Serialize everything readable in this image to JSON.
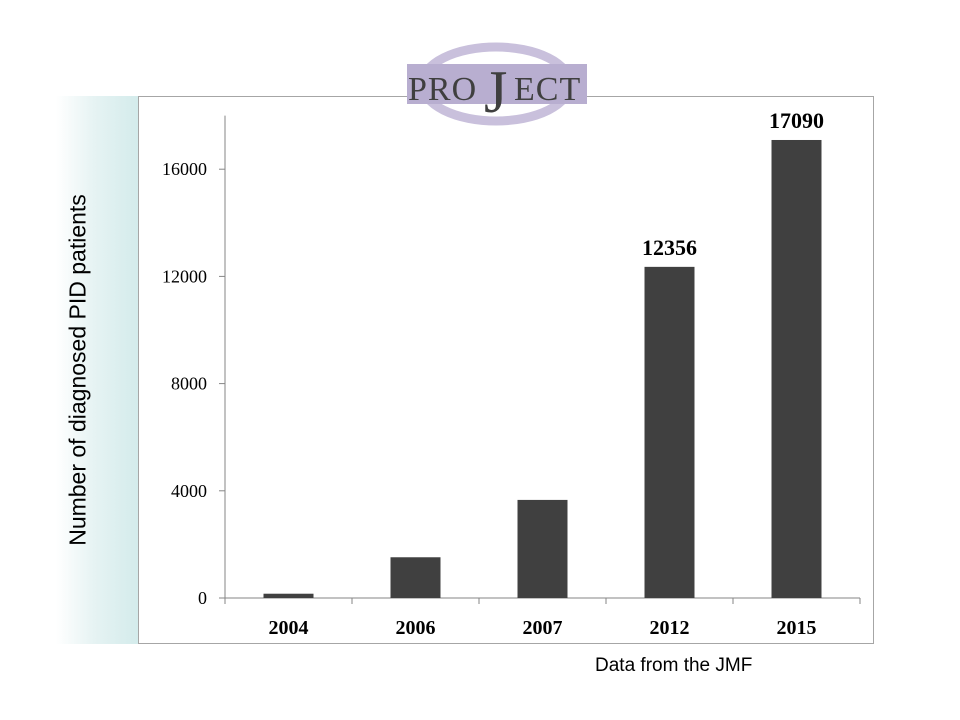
{
  "logo": {
    "text_left": "PRO",
    "text_big": "J",
    "text_right": "ECT",
    "ring_color": "#c9c0dc",
    "box_color": "#b8aed0",
    "text_color": "#3f3f3f"
  },
  "footnote": "Data from the JMF",
  "chart_data": {
    "type": "bar",
    "categories": [
      "2004",
      "2006",
      "2007",
      "2012",
      "2015"
    ],
    "values": [
      160,
      1520,
      3660,
      12356,
      17090
    ],
    "data_labels": [
      "",
      "",
      "",
      "12356",
      "17090"
    ],
    "ylabel": "Number of diagnosed PID patients",
    "xlabel": "",
    "ylim": [
      0,
      18000
    ],
    "yticks": [
      0,
      4000,
      8000,
      12000,
      16000
    ],
    "bar_color": "#404040",
    "grid": false
  }
}
